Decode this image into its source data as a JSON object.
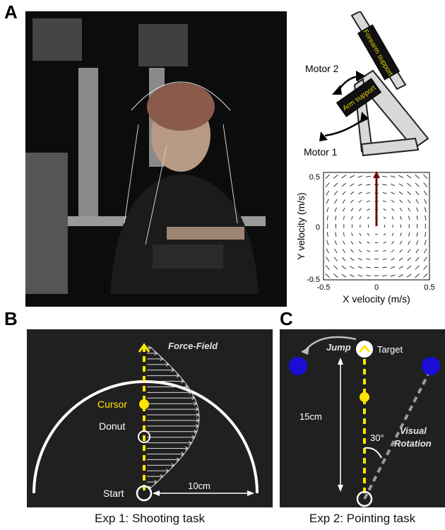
{
  "panels": {
    "a": {
      "letter": "A"
    },
    "b": {
      "letter": "B"
    },
    "c": {
      "letter": "C"
    }
  },
  "robot_diagram": {
    "motor2": "Motor 2",
    "motor1": "Motor 1",
    "forearm_support": "Forearm support",
    "arm_support": "Arm support"
  },
  "chart_data": {
    "type": "quiver",
    "xlabel": "X velocity (m/s)",
    "ylabel": "Y velocity  (m/s)",
    "xlim": [
      -0.5,
      0.5
    ],
    "ylim": [
      -0.5,
      0.5
    ],
    "xticks": [
      "-0.5",
      "0",
      "0.5"
    ],
    "yticks": [
      "0.5",
      "0",
      "-0.5"
    ],
    "grid": false,
    "field": "curl (velocity-dependent force field)"
  },
  "exp1": {
    "force_field_label": "Force-Field",
    "cursor_label": "Cursor",
    "donut_label": "Donut",
    "start_label": "Start",
    "distance_label": "10cm",
    "caption": "Exp 1: Shooting task"
  },
  "exp2": {
    "jump_label": "Jump",
    "target_label": "Target",
    "distance_label": "15cm",
    "angle_label": "30°",
    "rotation_label": "Visual\nRotation",
    "caption": "Exp 2: Pointing task"
  },
  "colors": {
    "yellow": "#ffe500",
    "blue": "#1a0ed6",
    "dark_bg": "#202020",
    "arrow_red": "#6b0a0a"
  }
}
